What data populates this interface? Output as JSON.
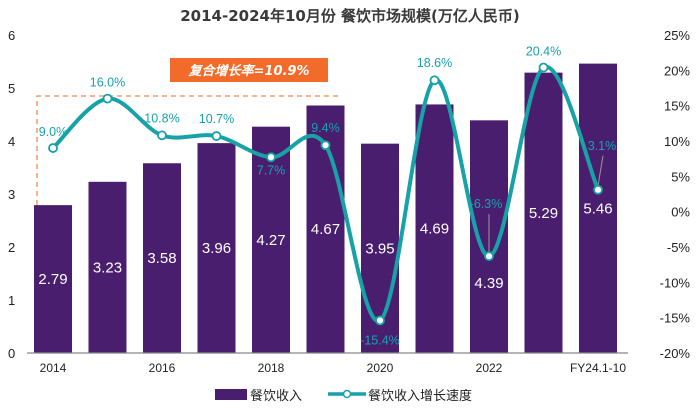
{
  "chart_data": {
    "type": "bar+line",
    "title": "2014-2024年10月份 餐饮市场规模(万亿人民币)",
    "categories": [
      "2014",
      "",
      "2016",
      "",
      "2018",
      "",
      "2020",
      "",
      "2022",
      "",
      "FY24.1-10"
    ],
    "left_axis": {
      "ylim": [
        0,
        6
      ],
      "ticks": [
        "0",
        "1",
        "2",
        "3",
        "4",
        "5",
        "6"
      ]
    },
    "right_axis": {
      "ylim": [
        -20,
        25
      ],
      "ticks": [
        "-20%",
        "-15%",
        "-10%",
        "-5%",
        "0%",
        "5%",
        "10%",
        "15%",
        "20%",
        "25%"
      ]
    },
    "series": [
      {
        "name": "餐饮收入",
        "type": "bar",
        "axis": "left",
        "color": "#4A1E6E",
        "values": [
          2.79,
          3.23,
          3.58,
          3.96,
          4.27,
          4.67,
          3.95,
          4.69,
          4.39,
          5.29,
          5.46
        ],
        "labels": [
          "2.79",
          "3.23",
          "3.58",
          "3.96",
          "4.27",
          "4.67",
          "3.95",
          "4.69",
          "4.39",
          "5.29",
          "5.46"
        ]
      },
      {
        "name": "餐饮收入增长速度",
        "type": "line",
        "axis": "right",
        "smooth": true,
        "color": "#17A2A8",
        "values": [
          9.0,
          16.0,
          10.8,
          10.7,
          7.7,
          9.4,
          -15.4,
          18.6,
          -6.3,
          20.4,
          3.1
        ],
        "labels": [
          "9.0%",
          "16.0%",
          "10.8%",
          "10.7%",
          "7.7%",
          "9.4%",
          "-15.4%",
          "18.6%",
          "-6.3%",
          "20.4%",
          "3.1%"
        ]
      }
    ],
    "annotation": {
      "text": "复合增长率=10.9%",
      "color": "#F26B2A"
    },
    "grid": false,
    "legend": "bottom"
  }
}
